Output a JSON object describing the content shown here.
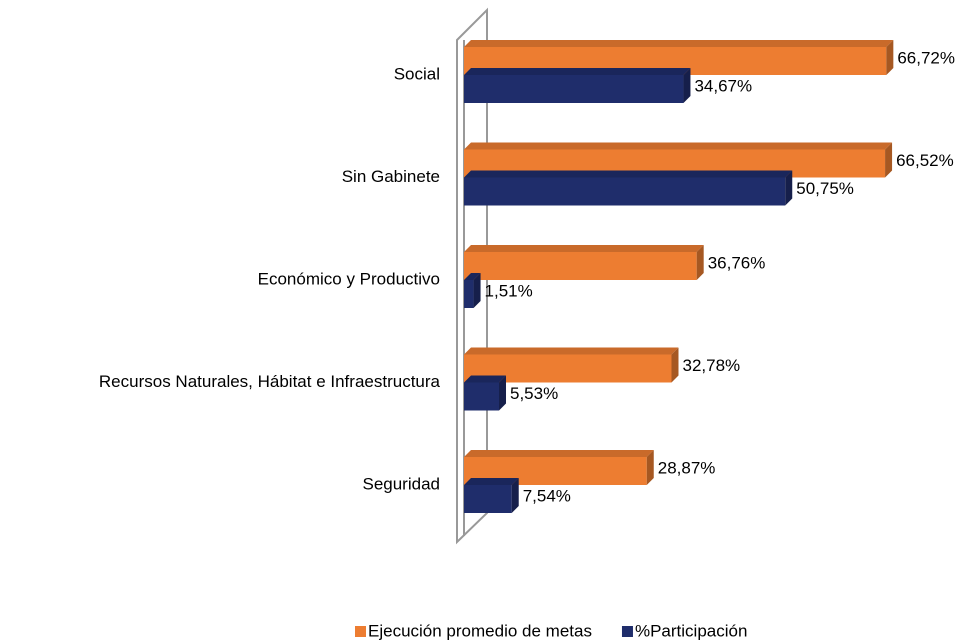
{
  "chart_data": {
    "type": "bar",
    "orientation": "horizontal",
    "categories": [
      "Social",
      "Sin Gabinete",
      "Económico y Productivo",
      "Recursos Naturales, Hábitat e Infraestructura",
      "Seguridad"
    ],
    "series": [
      {
        "name": "Ejecución promedio de metas",
        "color": "#ED7D31",
        "values": [
          66.72,
          66.52,
          36.76,
          32.78,
          28.87
        ],
        "value_labels": [
          "66,72%",
          "66,52%",
          "36,76%",
          "32,78%",
          "28,87%"
        ]
      },
      {
        "name": "%Participación",
        "color": "#1F2D6B",
        "values": [
          34.67,
          50.75,
          1.51,
          5.53,
          7.54
        ],
        "value_labels": [
          "34,67%",
          "50,75%",
          "1,51%",
          "5,53%",
          "7,54%"
        ]
      }
    ],
    "legend": "bottom"
  }
}
